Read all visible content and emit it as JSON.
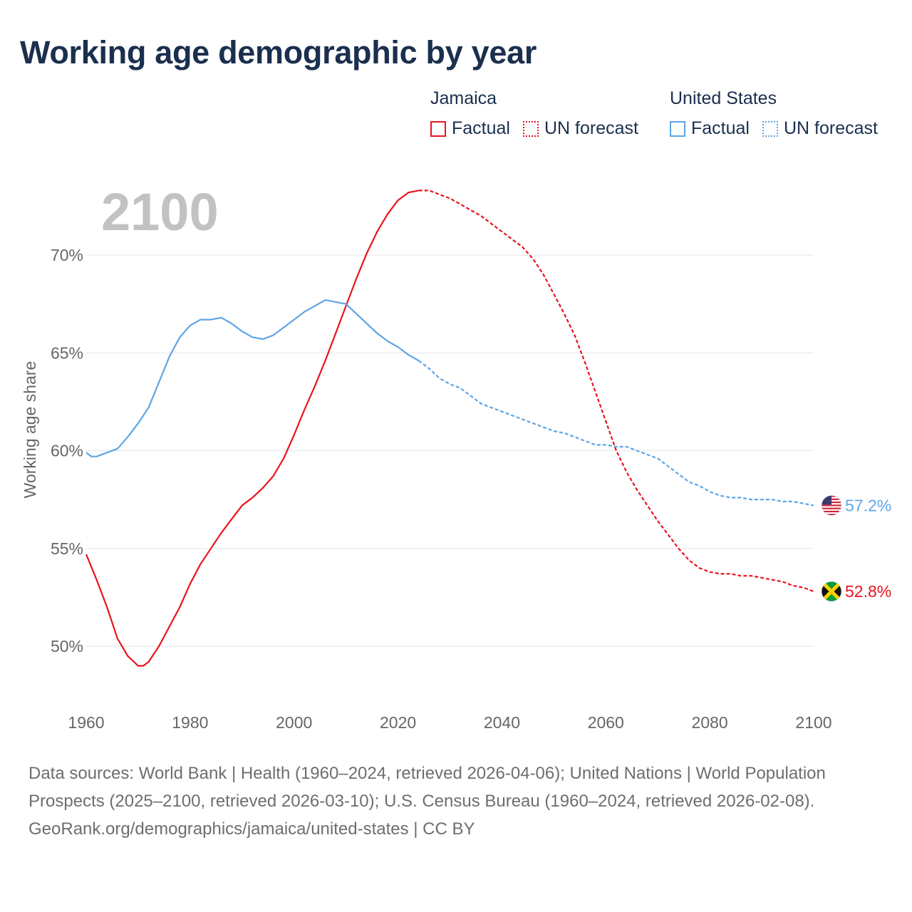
{
  "title": "Working age demographic by year",
  "legend": {
    "groups": [
      {
        "name": "Jamaica",
        "color": "#e8141e",
        "factual_label": "Factual",
        "forecast_label": "UN forecast"
      },
      {
        "name": "United States",
        "color": "#5ea5e6",
        "factual_label": "Factual",
        "forecast_label": "UN forecast"
      }
    ]
  },
  "chart_data": {
    "type": "line",
    "year_label": "2100",
    "ylabel": "Working age share",
    "xlim": [
      1960,
      2100
    ],
    "ylim": [
      47.5,
      73.5
    ],
    "x_ticks": [
      1960,
      1980,
      2000,
      2020,
      2040,
      2060,
      2080,
      2100
    ],
    "x_tick_labels": [
      "1960",
      "1980",
      "2000",
      "2020",
      "2040",
      "2060",
      "2080",
      "2100"
    ],
    "y_ticks": [
      50,
      55,
      60,
      65,
      70
    ],
    "y_tick_labels": [
      "50%",
      "55%",
      "60%",
      "65%",
      "70%"
    ],
    "factual_end_year": 2024,
    "series": [
      {
        "name": "Jamaica",
        "color": "#e8141e",
        "flag": "jamaica-flag",
        "end_label": "52.8%",
        "points": [
          [
            1960,
            54.7
          ],
          [
            1962,
            53.4
          ],
          [
            1964,
            52.0
          ],
          [
            1966,
            50.4
          ],
          [
            1968,
            49.5
          ],
          [
            1970,
            49.0
          ],
          [
            1971,
            49.0
          ],
          [
            1972,
            49.2
          ],
          [
            1974,
            50.0
          ],
          [
            1976,
            51.0
          ],
          [
            1978,
            52.0
          ],
          [
            1980,
            53.2
          ],
          [
            1982,
            54.2
          ],
          [
            1984,
            55.0
          ],
          [
            1986,
            55.8
          ],
          [
            1988,
            56.5
          ],
          [
            1990,
            57.2
          ],
          [
            1992,
            57.6
          ],
          [
            1994,
            58.1
          ],
          [
            1996,
            58.7
          ],
          [
            1998,
            59.6
          ],
          [
            2000,
            60.8
          ],
          [
            2002,
            62.1
          ],
          [
            2004,
            63.3
          ],
          [
            2006,
            64.6
          ],
          [
            2008,
            66.0
          ],
          [
            2010,
            67.4
          ],
          [
            2012,
            68.8
          ],
          [
            2014,
            70.1
          ],
          [
            2016,
            71.2
          ],
          [
            2018,
            72.1
          ],
          [
            2020,
            72.8
          ],
          [
            2022,
            73.2
          ],
          [
            2024,
            73.3
          ],
          [
            2026,
            73.3
          ],
          [
            2028,
            73.1
          ],
          [
            2030,
            72.9
          ],
          [
            2032,
            72.6
          ],
          [
            2034,
            72.3
          ],
          [
            2036,
            72.0
          ],
          [
            2038,
            71.6
          ],
          [
            2040,
            71.2
          ],
          [
            2042,
            70.8
          ],
          [
            2044,
            70.4
          ],
          [
            2046,
            69.8
          ],
          [
            2048,
            69.0
          ],
          [
            2050,
            68.0
          ],
          [
            2052,
            67.0
          ],
          [
            2054,
            65.9
          ],
          [
            2056,
            64.5
          ],
          [
            2058,
            63.0
          ],
          [
            2060,
            61.5
          ],
          [
            2062,
            60.0
          ],
          [
            2064,
            58.9
          ],
          [
            2066,
            58.0
          ],
          [
            2068,
            57.2
          ],
          [
            2070,
            56.4
          ],
          [
            2072,
            55.7
          ],
          [
            2074,
            55.0
          ],
          [
            2076,
            54.4
          ],
          [
            2078,
            54.0
          ],
          [
            2080,
            53.8
          ],
          [
            2082,
            53.7
          ],
          [
            2084,
            53.7
          ],
          [
            2086,
            53.6
          ],
          [
            2088,
            53.6
          ],
          [
            2090,
            53.5
          ],
          [
            2092,
            53.4
          ],
          [
            2094,
            53.3
          ],
          [
            2096,
            53.1
          ],
          [
            2098,
            53.0
          ],
          [
            2100,
            52.8
          ]
        ]
      },
      {
        "name": "United States",
        "color": "#5ea5e6",
        "flag": "united-states-flag",
        "end_label": "57.2%",
        "points": [
          [
            1960,
            59.9
          ],
          [
            1961,
            59.7
          ],
          [
            1962,
            59.7
          ],
          [
            1964,
            59.9
          ],
          [
            1966,
            60.1
          ],
          [
            1968,
            60.7
          ],
          [
            1970,
            61.4
          ],
          [
            1972,
            62.2
          ],
          [
            1974,
            63.5
          ],
          [
            1976,
            64.8
          ],
          [
            1978,
            65.8
          ],
          [
            1980,
            66.4
          ],
          [
            1982,
            66.7
          ],
          [
            1984,
            66.7
          ],
          [
            1986,
            66.8
          ],
          [
            1988,
            66.5
          ],
          [
            1990,
            66.1
          ],
          [
            1992,
            65.8
          ],
          [
            1994,
            65.7
          ],
          [
            1996,
            65.9
          ],
          [
            1998,
            66.3
          ],
          [
            2000,
            66.7
          ],
          [
            2002,
            67.1
          ],
          [
            2004,
            67.4
          ],
          [
            2006,
            67.7
          ],
          [
            2008,
            67.6
          ],
          [
            2010,
            67.5
          ],
          [
            2012,
            67.0
          ],
          [
            2014,
            66.5
          ],
          [
            2016,
            66.0
          ],
          [
            2018,
            65.6
          ],
          [
            2020,
            65.3
          ],
          [
            2022,
            64.9
          ],
          [
            2024,
            64.6
          ],
          [
            2026,
            64.2
          ],
          [
            2028,
            63.7
          ],
          [
            2030,
            63.4
          ],
          [
            2032,
            63.2
          ],
          [
            2034,
            62.8
          ],
          [
            2036,
            62.4
          ],
          [
            2038,
            62.2
          ],
          [
            2040,
            62.0
          ],
          [
            2042,
            61.8
          ],
          [
            2044,
            61.6
          ],
          [
            2046,
            61.4
          ],
          [
            2048,
            61.2
          ],
          [
            2050,
            61.0
          ],
          [
            2052,
            60.9
          ],
          [
            2054,
            60.7
          ],
          [
            2056,
            60.5
          ],
          [
            2058,
            60.3
          ],
          [
            2060,
            60.3
          ],
          [
            2062,
            60.2
          ],
          [
            2064,
            60.2
          ],
          [
            2066,
            60.0
          ],
          [
            2068,
            59.8
          ],
          [
            2070,
            59.6
          ],
          [
            2072,
            59.2
          ],
          [
            2074,
            58.8
          ],
          [
            2076,
            58.4
          ],
          [
            2078,
            58.2
          ],
          [
            2080,
            57.9
          ],
          [
            2082,
            57.7
          ],
          [
            2084,
            57.6
          ],
          [
            2086,
            57.6
          ],
          [
            2088,
            57.5
          ],
          [
            2090,
            57.5
          ],
          [
            2092,
            57.5
          ],
          [
            2094,
            57.4
          ],
          [
            2096,
            57.4
          ],
          [
            2098,
            57.3
          ],
          [
            2100,
            57.2
          ]
        ]
      }
    ]
  },
  "footer": {
    "sources": "Data sources: World Bank | Health (1960–2024, retrieved 2026-04-06); United Nations | World Population Prospects (2025–2100, retrieved 2026-03-10); U.S. Census Bureau (1960–2024, retrieved 2026-02-08).",
    "credit": "GeoRank.org/demographics/jamaica/united-states | CC BY"
  }
}
